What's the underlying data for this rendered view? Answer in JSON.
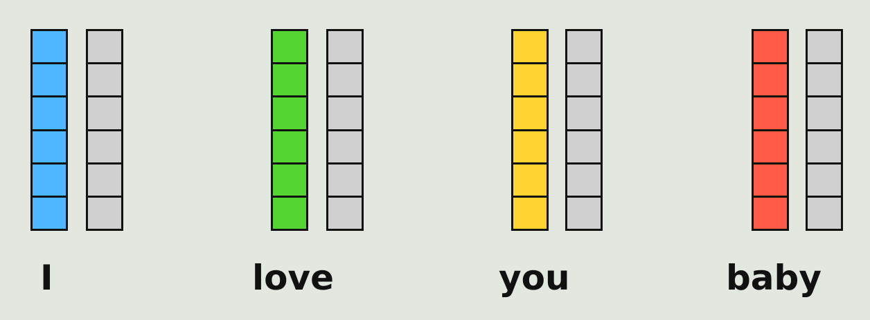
{
  "tokens": [
    {
      "word": "I",
      "color": "#4db8ff",
      "cells": 6,
      "empty_color": "#d0d0d0"
    },
    {
      "word": "love",
      "color": "#55d531",
      "cells": 6,
      "empty_color": "#d0d0d0"
    },
    {
      "word": "you",
      "color": "#ffd430",
      "cells": 6,
      "empty_color": "#d0d0d0"
    },
    {
      "word": "baby",
      "color": "#ff5a45",
      "cells": 6,
      "empty_color": "#d0d0d0"
    }
  ]
}
